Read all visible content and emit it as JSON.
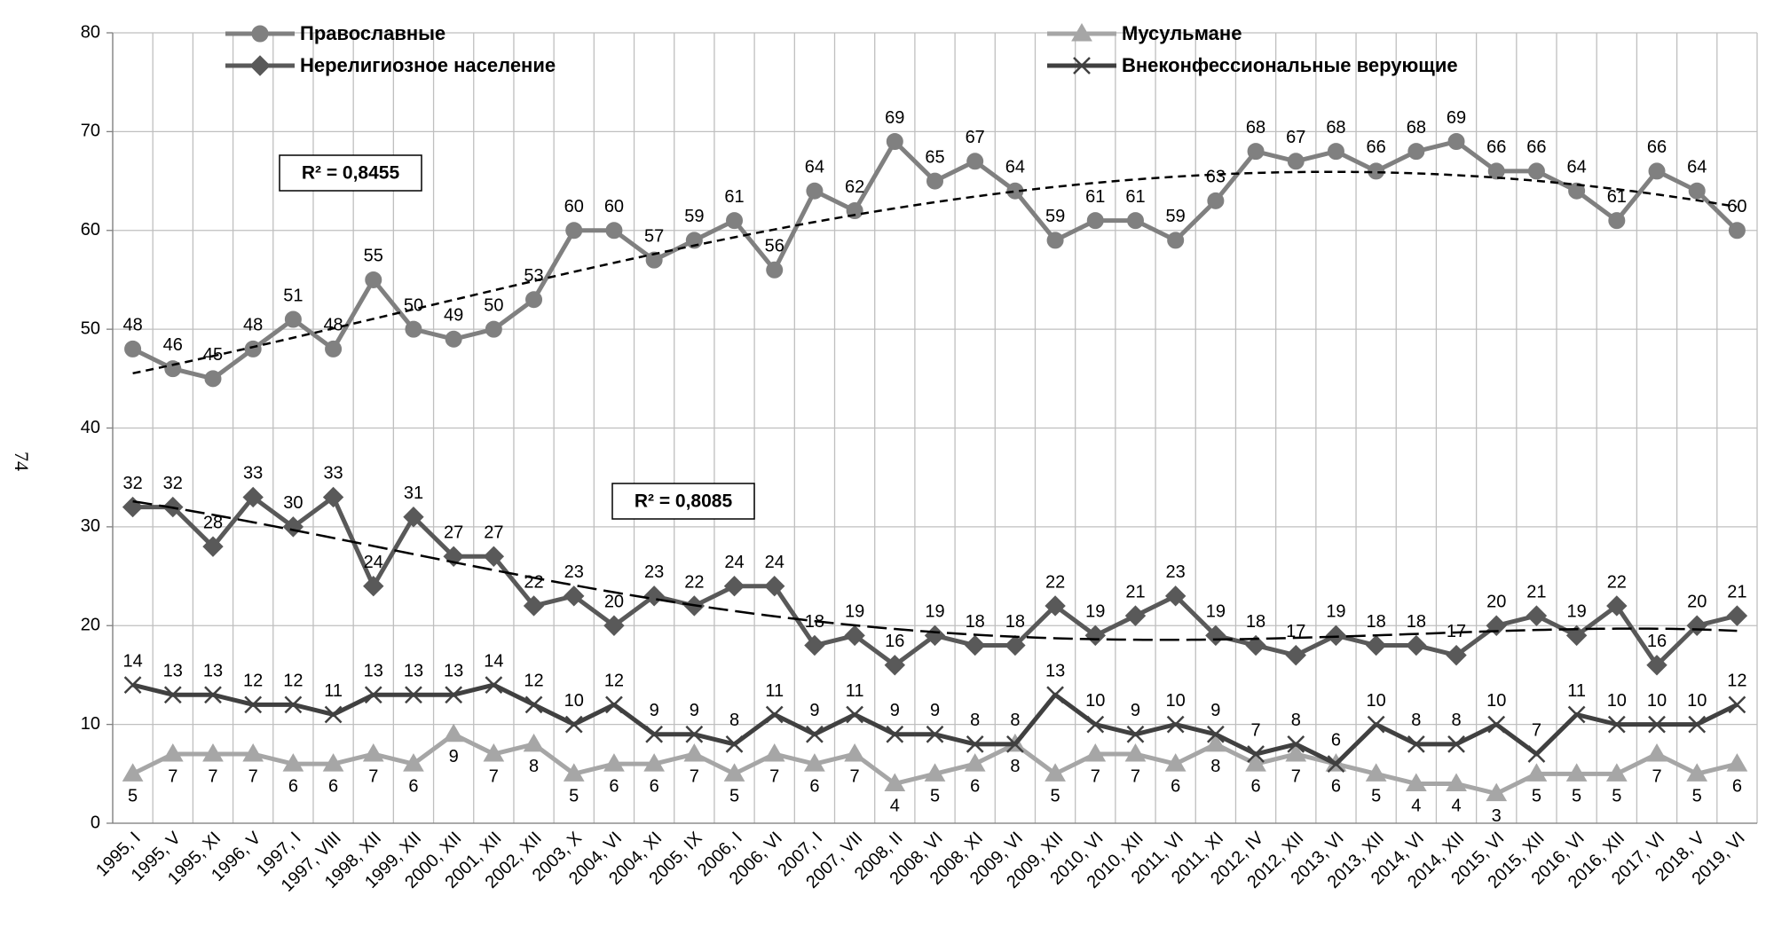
{
  "page_number": "74",
  "chart_data": {
    "type": "line",
    "categories": [
      "1995, I",
      "1995, V",
      "1995, XI",
      "1996, V",
      "1997, I",
      "1997, VIII",
      "1998, XII",
      "1999, XII",
      "2000, XII",
      "2001, XII",
      "2002, XII",
      "2003, X",
      "2004, VI",
      "2004, XI",
      "2005, IX",
      "2006, I",
      "2006, VI",
      "2007, I",
      "2007, VII",
      "2008, II",
      "2008, VI",
      "2008, XI",
      "2009, VI",
      "2009, XII",
      "2010, VI",
      "2010, XII",
      "2011, VI",
      "2011, XI",
      "2012, IV",
      "2012, XII",
      "2013, VI",
      "2013, XII",
      "2014, VI",
      "2014, XII",
      "2015, VI",
      "2015, XII",
      "2016, VI",
      "2016, XII",
      "2017, VI",
      "2018, V",
      "2019, VI"
    ],
    "series": [
      {
        "name": "Православные",
        "color": "#808080",
        "marker": "circle",
        "label_side": "above",
        "values": [
          48,
          46,
          45,
          48,
          51,
          48,
          55,
          50,
          49,
          50,
          53,
          60,
          60,
          57,
          59,
          61,
          56,
          64,
          62,
          69,
          65,
          67,
          64,
          59,
          61,
          61,
          59,
          63,
          68,
          67,
          68,
          66,
          68,
          69,
          66,
          66,
          64,
          61,
          66,
          64,
          60
        ],
        "trendline": {
          "order": 4,
          "label": "R² = 0,8455"
        }
      },
      {
        "name": "Нерелигиозное население",
        "color": "#595959",
        "marker": "diamond",
        "label_side": "above",
        "values": [
          32,
          32,
          28,
          33,
          30,
          33,
          24,
          31,
          27,
          27,
          22,
          23,
          20,
          23,
          22,
          24,
          24,
          18,
          19,
          16,
          19,
          18,
          18,
          22,
          19,
          21,
          23,
          19,
          18,
          17,
          19,
          18,
          18,
          17,
          20,
          21,
          19,
          22,
          16,
          20,
          21
        ],
        "trendline": {
          "order": 4,
          "label": "R² = 0,8085"
        }
      },
      {
        "name": "Мусульмане",
        "color": "#a6a6a6",
        "marker": "triangle",
        "label_side": "below",
        "values": [
          5,
          7,
          7,
          7,
          6,
          6,
          7,
          6,
          9,
          7,
          8,
          5,
          6,
          6,
          7,
          5,
          7,
          6,
          7,
          4,
          5,
          6,
          8,
          5,
          7,
          7,
          6,
          8,
          6,
          7,
          6,
          5,
          4,
          4,
          3,
          5,
          5,
          5,
          7,
          5,
          6
        ]
      },
      {
        "name": "Внеконфессиональные верующие",
        "color": "#404040",
        "marker": "x",
        "label_side": "above",
        "values": [
          14,
          13,
          13,
          12,
          12,
          11,
          13,
          13,
          13,
          14,
          12,
          10,
          12,
          9,
          9,
          8,
          11,
          9,
          11,
          9,
          9,
          8,
          8,
          13,
          10,
          9,
          10,
          9,
          7,
          8,
          6,
          10,
          8,
          8,
          10,
          7,
          11,
          10,
          10,
          10,
          12
        ]
      }
    ],
    "ylim": [
      0,
      80
    ],
    "yticks": [
      0,
      10,
      20,
      30,
      40,
      50,
      60,
      70,
      80
    ],
    "grid": true
  }
}
